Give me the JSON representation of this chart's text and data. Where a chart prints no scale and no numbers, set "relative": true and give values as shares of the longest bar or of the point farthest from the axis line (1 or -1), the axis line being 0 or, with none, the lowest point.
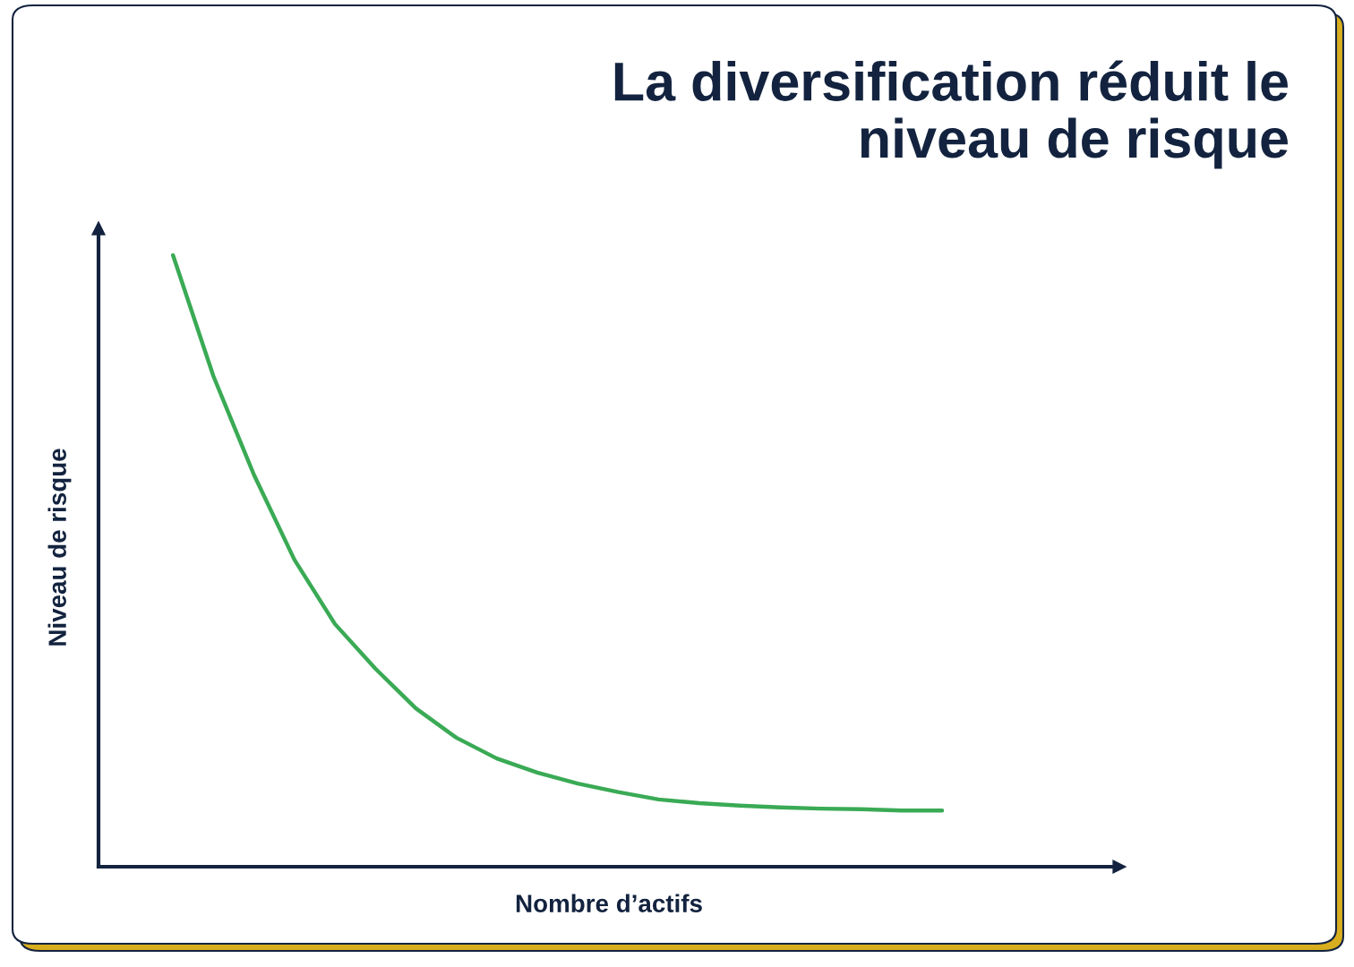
{
  "chart_data": {
    "type": "line",
    "title": "La diversification réduit le\nniveau de risque",
    "xlabel": "Nombre d’actifs",
    "ylabel": "Niveau de risque",
    "relative": true,
    "categories": [
      null,
      null,
      null,
      null,
      null,
      null,
      null,
      null,
      null,
      null,
      null,
      null,
      null,
      null,
      null,
      null,
      null,
      null,
      null,
      null
    ],
    "series": [
      {
        "color": "#3aaa55",
        "values": [
          1.0,
          0.802,
          0.641,
          0.502,
          0.397,
          0.324,
          0.259,
          0.211,
          0.177,
          0.154,
          0.136,
          0.122,
          0.11,
          0.104,
          0.1,
          0.097,
          0.095,
          0.094,
          0.092,
          0.092
        ]
      }
    ],
    "grid": false,
    "tick_labels": false,
    "marker": "none",
    "line_style": "solid"
  }
}
